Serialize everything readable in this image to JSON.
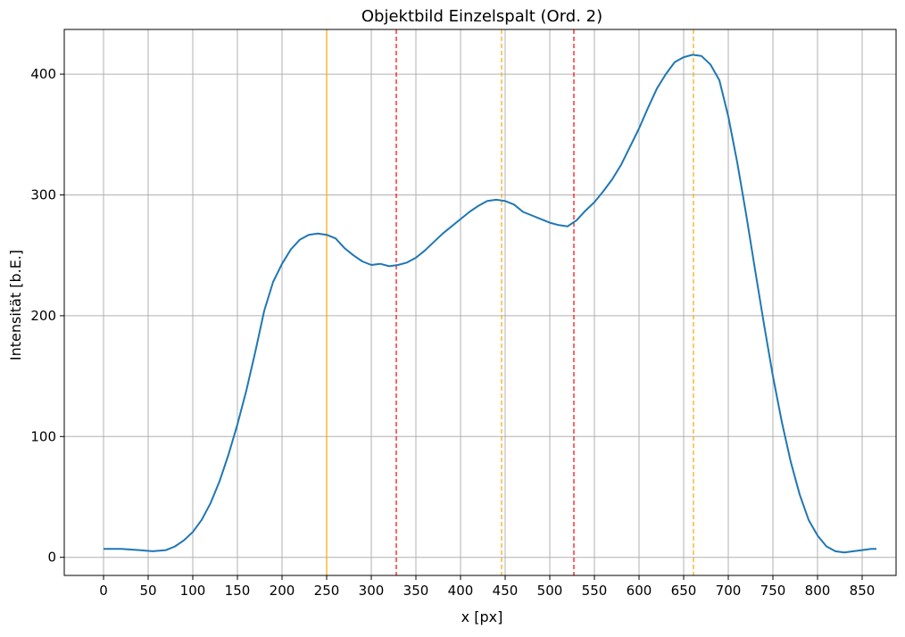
{
  "chart_data": {
    "type": "line",
    "title": "Objektbild Einzelspalt (Ord. 2)",
    "xlabel": "x [px]",
    "ylabel": "Intensität [b.E.]",
    "xlim": [
      -44,
      888
    ],
    "ylim": [
      -15,
      437
    ],
    "xticks": [
      0,
      50,
      100,
      150,
      200,
      250,
      300,
      350,
      400,
      450,
      500,
      550,
      600,
      650,
      700,
      750,
      800,
      850
    ],
    "yticks": [
      0,
      100,
      200,
      300,
      400
    ],
    "grid": true,
    "series": [
      {
        "color": "#1f77b4",
        "x": [
          0,
          20,
          40,
          55,
          70,
          80,
          90,
          100,
          110,
          120,
          130,
          140,
          150,
          160,
          170,
          180,
          190,
          200,
          210,
          220,
          230,
          240,
          250,
          260,
          270,
          280,
          290,
          300,
          310,
          320,
          330,
          340,
          350,
          360,
          370,
          380,
          390,
          400,
          410,
          420,
          430,
          440,
          450,
          460,
          470,
          480,
          490,
          500,
          510,
          520,
          530,
          540,
          550,
          560,
          570,
          580,
          590,
          600,
          610,
          620,
          630,
          640,
          650,
          660,
          670,
          680,
          690,
          700,
          710,
          720,
          730,
          740,
          750,
          760,
          770,
          780,
          790,
          800,
          810,
          820,
          830,
          840,
          850,
          860,
          866
        ],
        "y": [
          7,
          7,
          6,
          5,
          6,
          9,
          14,
          21,
          31,
          45,
          63,
          85,
          110,
          138,
          170,
          204,
          228,
          243,
          255,
          263,
          267,
          268,
          267,
          264,
          256,
          250,
          245,
          242,
          243,
          241,
          242,
          244,
          248,
          254,
          261,
          268,
          274,
          280,
          286,
          291,
          295,
          296,
          295,
          292,
          286,
          283,
          280,
          277,
          275,
          274,
          279,
          287,
          294,
          303,
          313,
          325,
          340,
          355,
          372,
          388,
          400,
          410,
          414,
          416,
          415,
          408,
          395,
          365,
          327,
          284,
          238,
          193,
          150,
          112,
          79,
          52,
          31,
          18,
          9,
          5,
          4,
          5,
          6,
          7,
          7
        ]
      }
    ],
    "vlines": [
      {
        "x": 250,
        "color": "#ffa500",
        "style": "solid"
      },
      {
        "x": 328,
        "color": "#ff0000",
        "style": "dashed"
      },
      {
        "x": 446,
        "color": "#ffa500",
        "style": "dashed"
      },
      {
        "x": 527,
        "color": "#ff0000",
        "style": "dashed"
      },
      {
        "x": 661,
        "color": "#ffa500",
        "style": "dashed"
      }
    ]
  }
}
